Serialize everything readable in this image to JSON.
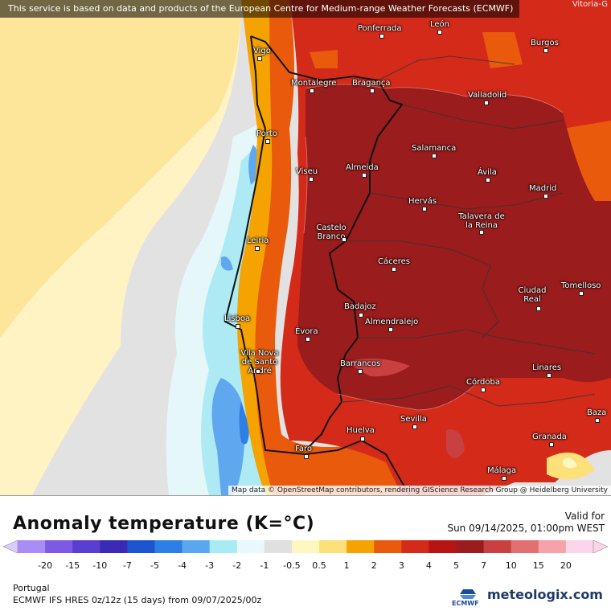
{
  "map": {
    "banner": "This service is based on data and products of the European Centre for Medium-range Weather Forecasts (ECMWF)",
    "corner_label": "Vitoria-G",
    "attribution": "Map data © OpenStreetMap contributors, rendering GIScience Research Group @ Heidelberg University",
    "cities": [
      {
        "name": "Ponferrada",
        "key": "ponferrada"
      },
      {
        "name": "León",
        "key": "leon"
      },
      {
        "name": "Burgos",
        "key": "burgos"
      },
      {
        "name": "Vigo",
        "key": "vigo"
      },
      {
        "name": "Montalegre",
        "key": "montalegre"
      },
      {
        "name": "Bragança",
        "key": "braganca"
      },
      {
        "name": "Valladolid",
        "key": "valladolid"
      },
      {
        "name": "Porto",
        "key": "porto"
      },
      {
        "name": "Salamanca",
        "key": "salamanca"
      },
      {
        "name": "Viseu",
        "key": "viseu"
      },
      {
        "name": "Almeida",
        "key": "almeida"
      },
      {
        "name": "Ávila",
        "key": "avila"
      },
      {
        "name": "Madrid",
        "key": "madrid"
      },
      {
        "name": "Hervás",
        "key": "hervas"
      },
      {
        "name": "Talavera de la Reina",
        "key": "talavera"
      },
      {
        "name": "Castelo Branco",
        "key": "castelo"
      },
      {
        "name": "Leiria",
        "key": "leiria"
      },
      {
        "name": "Cáceres",
        "key": "caceres"
      },
      {
        "name": "Ciudad Real",
        "key": "ciudadreal"
      },
      {
        "name": "Tomelloso",
        "key": "tomelloso"
      },
      {
        "name": "Badajoz",
        "key": "badajoz"
      },
      {
        "name": "Almendralejo",
        "key": "almendralejo"
      },
      {
        "name": "Lisboa",
        "key": "lisboa"
      },
      {
        "name": "Évora",
        "key": "evora"
      },
      {
        "name": "Vila Nova de Santo André",
        "key": "vilanova"
      },
      {
        "name": "Barrancos",
        "key": "barrancos"
      },
      {
        "name": "Linares",
        "key": "linares"
      },
      {
        "name": "Córdoba",
        "key": "cordoba"
      },
      {
        "name": "Sevilla",
        "key": "sevilla"
      },
      {
        "name": "Baza",
        "key": "baza"
      },
      {
        "name": "Huelva",
        "key": "huelva"
      },
      {
        "name": "Faro",
        "key": "faro"
      },
      {
        "name": "Granada",
        "key": "granada"
      },
      {
        "name": "Málaga",
        "key": "malaga"
      }
    ]
  },
  "header": {
    "title": "Anomaly temperature (K=°C)",
    "valid_label": "Valid for",
    "valid_time": "Sun 09/14/2025, 01:00pm WEST"
  },
  "legend": {
    "labels": [
      "-20",
      "-15",
      "-10",
      "-7",
      "-5",
      "-4",
      "-3",
      "-2",
      "-1",
      "-0.5",
      "0.5",
      "1",
      "2",
      "3",
      "4",
      "5",
      "7",
      "10",
      "15",
      "20"
    ],
    "colors": [
      "#a98cf5",
      "#7d5ae6",
      "#5a3ed1",
      "#3a2ab5",
      "#1b55cf",
      "#2b7fe6",
      "#5aa6f0",
      "#a6ecf2",
      "#e8f8fb",
      "#e0e0e0",
      "#fff7c0",
      "#fce07a",
      "#f5a300",
      "#ea5a0c",
      "#d42a1a",
      "#b91414",
      "#9a1c1c",
      "#c84040",
      "#e37070",
      "#f5a3a8",
      "#fbd6ea"
    ],
    "low_arrow_color": "#d9ccfb",
    "high_arrow_color": "#fbd6ea"
  },
  "footer": {
    "region": "Portugal",
    "model": "ECMWF IFS HRES 0z/12z (15 days) from 09/07/2025/00z",
    "ecmwf_logo": "ECMWF",
    "brand": "meteologix.com"
  }
}
